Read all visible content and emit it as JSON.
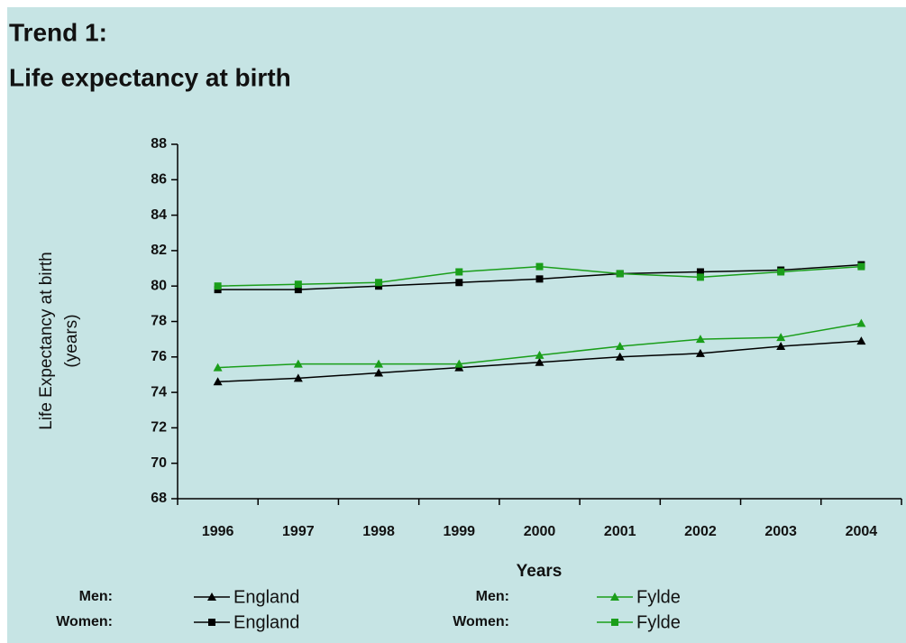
{
  "chart_data": {
    "type": "line",
    "title": [
      "Trend 1:",
      "Life expectancy at birth"
    ],
    "ylabel": [
      "Life Expectancy at birth",
      "(years)"
    ],
    "xlabel": "Years",
    "categories": [
      "1996",
      "1997",
      "1998",
      "1999",
      "2000",
      "2001",
      "2002",
      "2003",
      "2004"
    ],
    "ylim": [
      68,
      88
    ],
    "yticks": [
      68,
      70,
      72,
      74,
      76,
      78,
      80,
      82,
      84,
      86,
      88
    ],
    "grid": false,
    "series": [
      {
        "group": "Men:",
        "name": "England",
        "color": "#000000",
        "marker": "triangle",
        "values": [
          74.6,
          74.8,
          75.1,
          75.4,
          75.7,
          76.0,
          76.2,
          76.6,
          76.9
        ]
      },
      {
        "group": "Women:",
        "name": "England",
        "color": "#000000",
        "marker": "square",
        "values": [
          79.8,
          79.8,
          80.0,
          80.2,
          80.4,
          80.7,
          80.8,
          80.9,
          81.2
        ]
      },
      {
        "group": "Men:",
        "name": "Fylde",
        "color": "#1a9e1a",
        "marker": "triangle",
        "values": [
          75.4,
          75.6,
          75.6,
          75.6,
          76.1,
          76.6,
          77.0,
          77.1,
          77.9
        ]
      },
      {
        "group": "Women:",
        "name": "Fylde",
        "color": "#1a9e1a",
        "marker": "square",
        "values": [
          80.0,
          80.1,
          80.2,
          80.8,
          81.1,
          80.7,
          80.5,
          80.8,
          81.1
        ]
      }
    ]
  }
}
